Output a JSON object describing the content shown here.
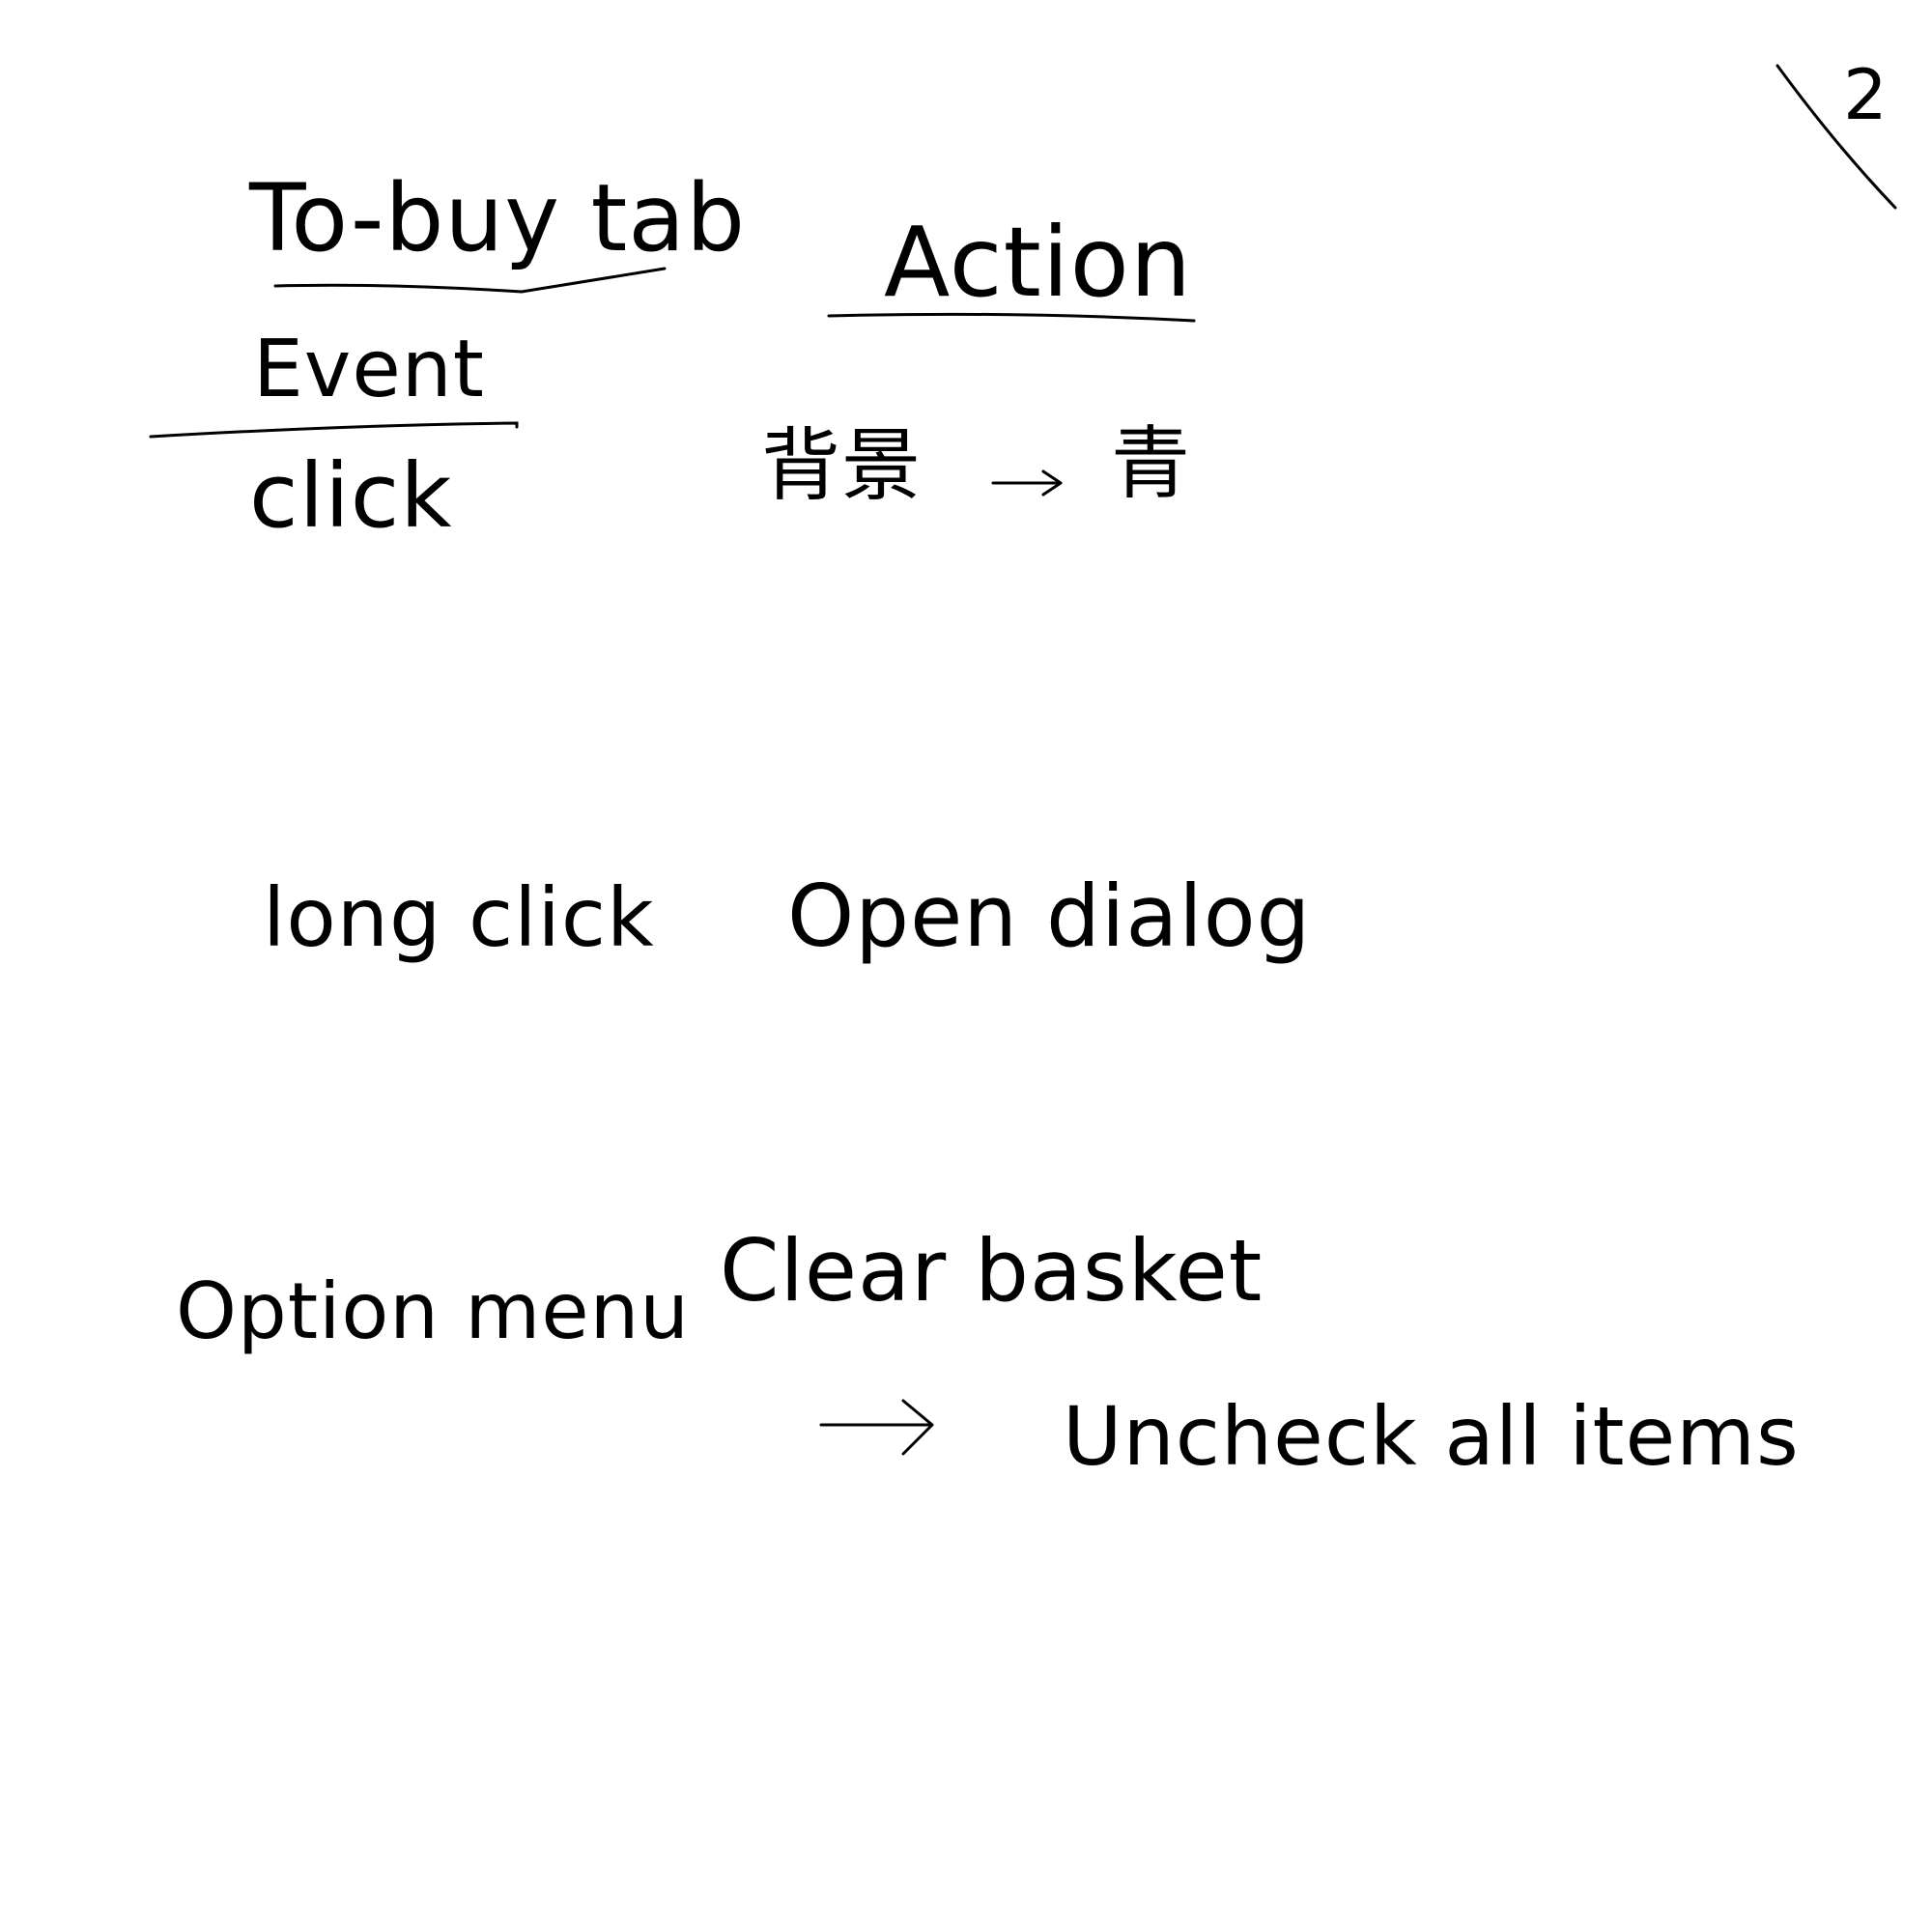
{
  "page_number": "2",
  "header": {
    "tab_title": "To-buy tab",
    "action_heading": "Action",
    "event_heading": "Event"
  },
  "rows": [
    {
      "event": "click",
      "action_source": "背景",
      "action_target": "青"
    },
    {
      "event": "long click",
      "action": "Open dialog"
    },
    {
      "event": "Option menu",
      "action": "Clear basket",
      "result": "Uncheck all items"
    }
  ]
}
